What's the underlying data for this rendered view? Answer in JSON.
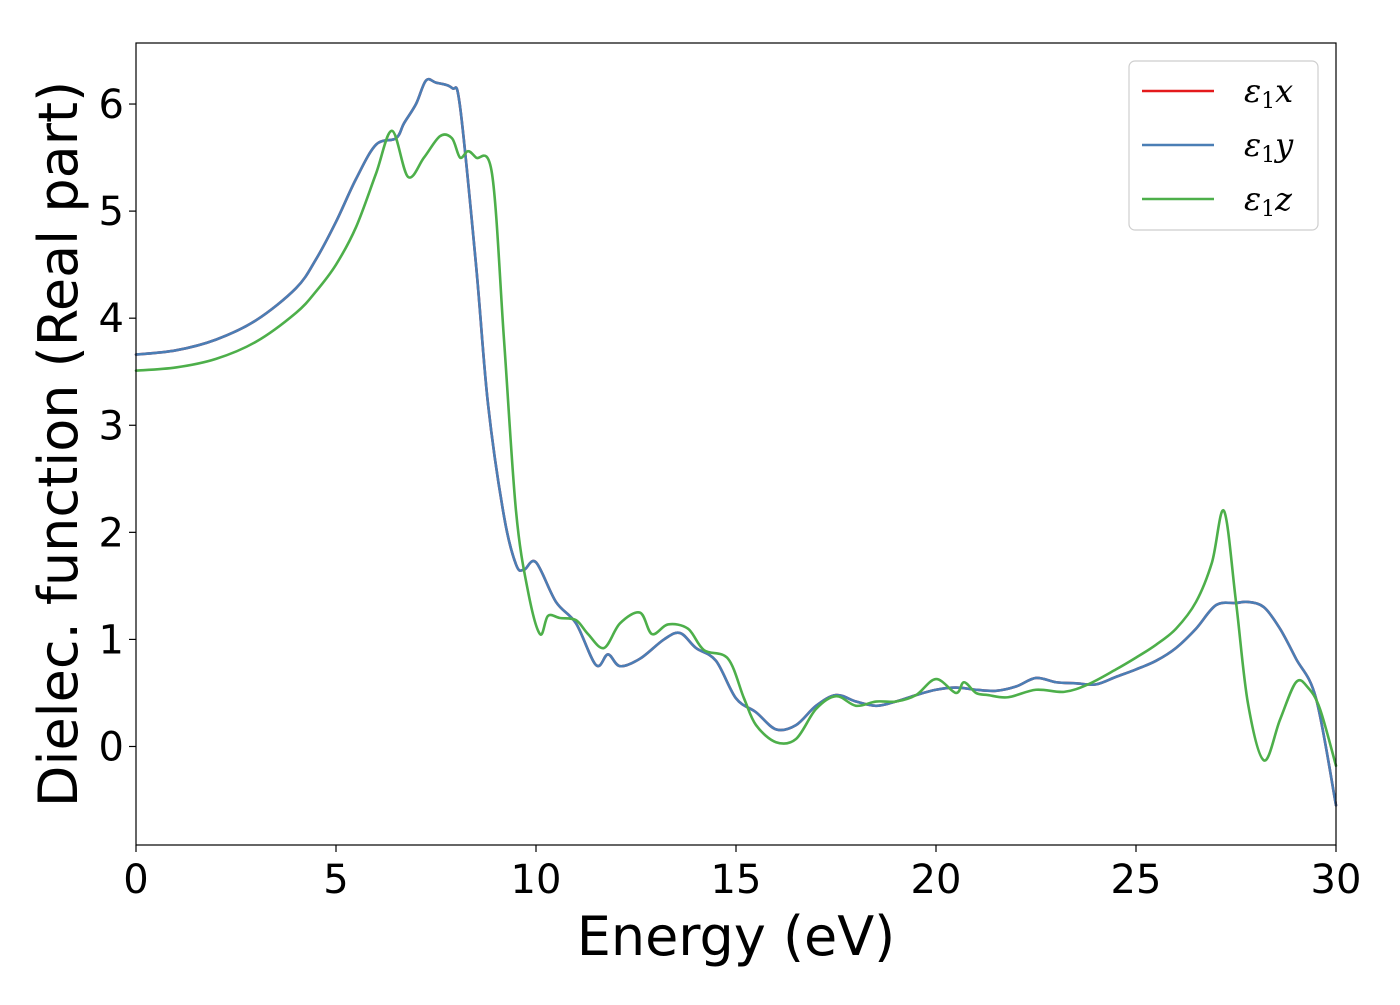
{
  "chart_data": {
    "type": "line",
    "title": "",
    "xlabel": "Energy (eV)",
    "ylabel": "Dielec. function (Real part)",
    "xlim": [
      0,
      30
    ],
    "ylim": [
      -0.92,
      6.57
    ],
    "xticks": [
      0,
      5,
      10,
      15,
      20,
      25,
      30
    ],
    "xtick_labels": [
      "0",
      "5",
      "10",
      "15",
      "20",
      "25",
      "30"
    ],
    "yticks": [
      0,
      1,
      2,
      3,
      4,
      5,
      6
    ],
    "ytick_labels": [
      "0",
      "1",
      "2",
      "3",
      "4",
      "5",
      "6"
    ],
    "grid": false,
    "legend": {
      "position": "top-right"
    },
    "series": [
      {
        "name": "ε1x",
        "label_base": "ε",
        "label_sub": "1",
        "label_var": "x",
        "color": "#e41a1c",
        "x": [
          0,
          1,
          2,
          3,
          4,
          4.5,
          5,
          5.5,
          6,
          6.5,
          6.7,
          7.0,
          7.25,
          7.5,
          7.9,
          8.1,
          8.5,
          8.8,
          9.2,
          9.5,
          9.7,
          10.0,
          10.5,
          11.0,
          11.5,
          11.8,
          12.1,
          12.6,
          13.2,
          13.6,
          14.0,
          14.5,
          15.0,
          15.5,
          16.0,
          16.5,
          17.0,
          17.5,
          18.0,
          18.5,
          19.0,
          19.5,
          20.0,
          20.5,
          21.0,
          21.5,
          22.0,
          22.5,
          23.0,
          23.5,
          24.0,
          24.5,
          25.0,
          25.5,
          26.0,
          26.5,
          27.0,
          27.5,
          27.8,
          28.2,
          28.6,
          29.0,
          29.5,
          30.0
        ],
        "y": [
          3.66,
          3.7,
          3.8,
          3.98,
          4.28,
          4.55,
          4.9,
          5.3,
          5.62,
          5.68,
          5.82,
          6.0,
          6.22,
          6.2,
          6.15,
          5.98,
          4.5,
          3.2,
          2.15,
          1.7,
          1.65,
          1.72,
          1.35,
          1.15,
          0.76,
          0.86,
          0.75,
          0.82,
          1.0,
          1.06,
          0.92,
          0.8,
          0.45,
          0.32,
          0.16,
          0.2,
          0.38,
          0.48,
          0.42,
          0.38,
          0.42,
          0.48,
          0.53,
          0.55,
          0.53,
          0.52,
          0.56,
          0.64,
          0.6,
          0.59,
          0.58,
          0.65,
          0.72,
          0.8,
          0.92,
          1.1,
          1.32,
          1.34,
          1.35,
          1.3,
          1.1,
          0.82,
          0.45,
          -0.55
        ]
      },
      {
        "name": "ε1y",
        "label_base": "ε",
        "label_sub": "1",
        "label_var": "y",
        "color": "#4a7eb5",
        "x": [
          0,
          1,
          2,
          3,
          4,
          4.5,
          5,
          5.5,
          6,
          6.5,
          6.7,
          7.0,
          7.25,
          7.5,
          7.9,
          8.1,
          8.5,
          8.8,
          9.2,
          9.5,
          9.7,
          10.0,
          10.5,
          11.0,
          11.5,
          11.8,
          12.1,
          12.6,
          13.2,
          13.6,
          14.0,
          14.5,
          15.0,
          15.5,
          16.0,
          16.5,
          17.0,
          17.5,
          18.0,
          18.5,
          19.0,
          19.5,
          20.0,
          20.5,
          21.0,
          21.5,
          22.0,
          22.5,
          23.0,
          23.5,
          24.0,
          24.5,
          25.0,
          25.5,
          26.0,
          26.5,
          27.0,
          27.5,
          27.8,
          28.2,
          28.6,
          29.0,
          29.5,
          30.0
        ],
        "y": [
          3.66,
          3.7,
          3.8,
          3.98,
          4.28,
          4.55,
          4.9,
          5.3,
          5.62,
          5.68,
          5.82,
          6.0,
          6.22,
          6.2,
          6.15,
          5.98,
          4.5,
          3.2,
          2.15,
          1.7,
          1.65,
          1.72,
          1.35,
          1.15,
          0.76,
          0.86,
          0.75,
          0.82,
          1.0,
          1.06,
          0.92,
          0.8,
          0.45,
          0.32,
          0.16,
          0.2,
          0.38,
          0.48,
          0.42,
          0.38,
          0.42,
          0.48,
          0.53,
          0.55,
          0.53,
          0.52,
          0.56,
          0.64,
          0.6,
          0.59,
          0.58,
          0.65,
          0.72,
          0.8,
          0.92,
          1.1,
          1.32,
          1.34,
          1.35,
          1.3,
          1.1,
          0.82,
          0.45,
          -0.55
        ]
      },
      {
        "name": "ε1z",
        "label_base": "ε",
        "label_sub": "1",
        "label_var": "z",
        "color": "#4daf4a",
        "x": [
          0,
          1,
          2,
          3,
          4,
          4.5,
          5,
          5.5,
          6,
          6.4,
          6.8,
          7.2,
          7.6,
          7.9,
          8.1,
          8.3,
          8.5,
          8.9,
          9.2,
          9.5,
          9.8,
          10.1,
          10.3,
          10.6,
          11.0,
          11.3,
          11.7,
          12.1,
          12.6,
          12.9,
          13.3,
          13.8,
          14.2,
          14.8,
          15.2,
          15.5,
          16.0,
          16.5,
          17.0,
          17.5,
          18.0,
          18.5,
          19.0,
          19.5,
          20.0,
          20.5,
          20.7,
          21.0,
          21.3,
          21.8,
          22.5,
          23.2,
          23.8,
          24.5,
          25.0,
          25.5,
          26.0,
          26.5,
          26.9,
          27.2,
          27.5,
          27.8,
          28.2,
          28.6,
          29.0,
          29.3,
          29.6,
          30.0
        ],
        "y": [
          3.51,
          3.54,
          3.62,
          3.78,
          4.05,
          4.25,
          4.5,
          4.85,
          5.35,
          5.75,
          5.32,
          5.5,
          5.7,
          5.68,
          5.5,
          5.56,
          5.5,
          5.35,
          3.8,
          2.2,
          1.45,
          1.05,
          1.22,
          1.2,
          1.18,
          1.05,
          0.92,
          1.15,
          1.25,
          1.05,
          1.14,
          1.1,
          0.9,
          0.82,
          0.45,
          0.2,
          0.04,
          0.07,
          0.35,
          0.47,
          0.38,
          0.42,
          0.42,
          0.48,
          0.63,
          0.5,
          0.6,
          0.5,
          0.48,
          0.46,
          0.53,
          0.51,
          0.58,
          0.72,
          0.83,
          0.95,
          1.1,
          1.35,
          1.72,
          2.2,
          1.35,
          0.4,
          -0.13,
          0.25,
          0.6,
          0.55,
          0.35,
          -0.18
        ]
      }
    ]
  }
}
